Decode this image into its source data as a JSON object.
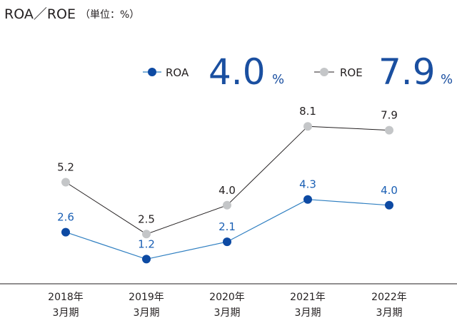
{
  "chart_data": {
    "type": "line",
    "title": "ROA／ROE",
    "unit": "（単位：%）",
    "categories_line1": [
      "2018年",
      "2019年",
      "2020年",
      "2021年",
      "2022年"
    ],
    "categories_line2": [
      "3月期",
      "3月期",
      "3月期",
      "3月期",
      "3月期"
    ],
    "series": [
      {
        "name": "ROA",
        "values": [
          2.6,
          1.2,
          2.1,
          4.3,
          4.0
        ],
        "labels": [
          "2.6",
          "1.2",
          "2.1",
          "4.3",
          "4.0"
        ],
        "color": "#0d4aa3",
        "line_color": "#2f7fc1"
      },
      {
        "name": "ROE",
        "values": [
          5.2,
          2.5,
          4.0,
          8.1,
          7.9
        ],
        "labels": [
          "5.2",
          "2.5",
          "4.0",
          "8.1",
          "7.9"
        ],
        "color": "#c4c6c8",
        "line_color": "#231f20"
      }
    ],
    "highlight": {
      "roa_value": "4.0",
      "roe_value": "7.9",
      "unit": "%"
    },
    "ylim": [
      0,
      9
    ],
    "grid": false,
    "legend": "top-right"
  }
}
